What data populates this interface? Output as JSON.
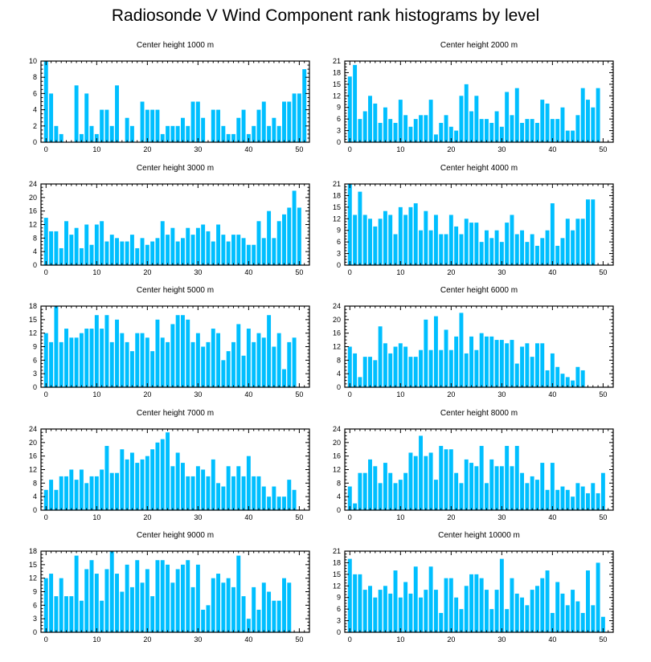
{
  "title": "Radiosonde V Wind Component rank histograms by level",
  "colors": {
    "bar": "#00bfff",
    "axis": "#000000"
  },
  "chart_data": [
    {
      "type": "bar",
      "title": "Center height 1000 m",
      "xlim": [
        -1,
        52
      ],
      "xticks": [
        0,
        10,
        20,
        30,
        40,
        50
      ],
      "ylim": [
        0,
        10
      ],
      "yticks": [
        0,
        2,
        4,
        6,
        8,
        10
      ],
      "values": [
        10,
        6,
        2,
        1,
        0,
        0,
        7,
        1,
        6,
        2,
        1,
        4,
        4,
        2,
        7,
        0,
        3,
        2,
        0,
        5,
        4,
        4,
        4,
        1,
        2,
        2,
        2,
        3,
        2,
        5,
        5,
        3,
        0,
        4,
        4,
        2,
        1,
        1,
        3,
        4,
        1,
        2,
        4,
        5,
        2,
        3,
        2,
        5,
        5,
        6,
        6,
        9
      ]
    },
    {
      "type": "bar",
      "title": "Center height 2000 m",
      "xlim": [
        -1,
        52
      ],
      "xticks": [
        0,
        10,
        20,
        30,
        40,
        50
      ],
      "ylim": [
        0,
        21
      ],
      "yticks": [
        0,
        3,
        6,
        9,
        12,
        15,
        18,
        21
      ],
      "values": [
        17,
        20,
        6,
        8,
        12,
        10,
        5,
        9,
        6,
        5,
        11,
        7,
        4,
        6,
        7,
        7,
        11,
        2,
        5,
        7,
        4,
        3,
        12,
        15,
        8,
        12,
        6,
        6,
        5,
        8,
        4,
        13,
        7,
        14,
        5,
        6,
        6,
        5,
        11,
        10,
        6,
        6,
        9,
        3,
        3,
        7,
        14,
        11,
        9,
        14,
        0,
        0
      ]
    },
    {
      "type": "bar",
      "title": "Center height 3000 m",
      "xlim": [
        -1,
        52
      ],
      "xticks": [
        0,
        10,
        20,
        30,
        40,
        50
      ],
      "ylim": [
        0,
        24
      ],
      "yticks": [
        0,
        4,
        8,
        12,
        16,
        20,
        24
      ],
      "values": [
        14,
        10,
        10,
        5,
        13,
        9,
        11,
        5,
        12,
        6,
        12,
        13,
        7,
        9,
        8,
        7,
        7,
        9,
        5,
        8,
        6,
        7,
        8,
        13,
        9,
        11,
        7,
        8,
        11,
        9,
        11,
        12,
        10,
        7,
        12,
        9,
        7,
        9,
        9,
        8,
        6,
        6,
        13,
        8,
        16,
        8,
        13,
        15,
        17,
        22,
        17,
        0
      ]
    },
    {
      "type": "bar",
      "title": "Center height 4000 m",
      "xlim": [
        -1,
        52
      ],
      "xticks": [
        0,
        10,
        20,
        30,
        40,
        50
      ],
      "ylim": [
        0,
        21
      ],
      "yticks": [
        0,
        3,
        6,
        9,
        12,
        15,
        18,
        21
      ],
      "values": [
        21,
        13,
        19,
        13,
        12,
        10,
        12,
        14,
        13,
        8,
        15,
        13,
        15,
        16,
        9,
        14,
        9,
        13,
        8,
        8,
        13,
        10,
        8,
        12,
        11,
        11,
        6,
        9,
        7,
        9,
        6,
        11,
        13,
        8,
        9,
        6,
        8,
        5,
        7,
        9,
        16,
        5,
        7,
        12,
        9,
        12,
        12,
        17,
        17,
        0,
        0,
        0
      ]
    },
    {
      "type": "bar",
      "title": "Center height 5000 m",
      "xlim": [
        -1,
        52
      ],
      "xticks": [
        0,
        10,
        20,
        30,
        40,
        50
      ],
      "ylim": [
        0,
        18
      ],
      "yticks": [
        0,
        3,
        6,
        9,
        12,
        15,
        18
      ],
      "values": [
        12,
        10,
        18,
        10,
        13,
        11,
        11,
        12,
        13,
        13,
        16,
        13,
        16,
        10,
        15,
        12,
        10,
        8,
        12,
        12,
        11,
        8,
        15,
        11,
        10,
        14,
        16,
        16,
        15,
        10,
        12,
        9,
        10,
        13,
        12,
        6,
        8,
        10,
        14,
        7,
        13,
        10,
        12,
        11,
        16,
        9,
        12,
        4,
        10,
        11,
        0,
        0
      ]
    },
    {
      "type": "bar",
      "title": "Center height 6000 m",
      "xlim": [
        -1,
        52
      ],
      "xticks": [
        0,
        10,
        20,
        30,
        40,
        50
      ],
      "ylim": [
        0,
        24
      ],
      "yticks": [
        0,
        4,
        8,
        12,
        16,
        20,
        24
      ],
      "values": [
        12,
        10,
        3,
        9,
        9,
        8,
        18,
        13,
        10,
        12,
        13,
        12,
        9,
        9,
        11,
        20,
        11,
        21,
        11,
        17,
        11,
        15,
        22,
        10,
        15,
        11,
        16,
        15,
        15,
        14,
        14,
        13,
        14,
        7,
        12,
        13,
        9,
        13,
        13,
        5,
        10,
        6,
        4,
        3,
        2,
        6,
        5,
        0,
        0,
        0,
        0,
        0
      ]
    },
    {
      "type": "bar",
      "title": "Center height 7000 m",
      "xlim": [
        -1,
        52
      ],
      "xticks": [
        0,
        10,
        20,
        30,
        40,
        50
      ],
      "ylim": [
        0,
        24
      ],
      "yticks": [
        0,
        4,
        8,
        12,
        16,
        20,
        24
      ],
      "values": [
        6,
        9,
        6,
        10,
        10,
        12,
        9,
        12,
        8,
        10,
        10,
        12,
        19,
        11,
        11,
        18,
        15,
        17,
        14,
        15,
        16,
        18,
        20,
        21,
        23,
        13,
        17,
        14,
        10,
        10,
        13,
        12,
        10,
        15,
        8,
        7,
        13,
        10,
        13,
        10,
        16,
        10,
        10,
        7,
        4,
        7,
        4,
        4,
        9,
        6,
        0,
        0
      ]
    },
    {
      "type": "bar",
      "title": "Center height 8000 m",
      "xlim": [
        -1,
        52
      ],
      "xticks": [
        0,
        10,
        20,
        30,
        40,
        50
      ],
      "ylim": [
        0,
        24
      ],
      "yticks": [
        0,
        4,
        8,
        12,
        16,
        20,
        24
      ],
      "values": [
        7,
        2,
        11,
        11,
        15,
        13,
        8,
        14,
        11,
        8,
        9,
        11,
        17,
        16,
        22,
        16,
        17,
        9,
        19,
        18,
        18,
        11,
        8,
        15,
        14,
        13,
        19,
        8,
        15,
        13,
        13,
        19,
        13,
        19,
        11,
        8,
        10,
        9,
        14,
        6,
        14,
        6,
        7,
        6,
        4,
        8,
        7,
        5,
        8,
        5,
        11,
        0
      ]
    },
    {
      "type": "bar",
      "title": "Center height 9000 m",
      "xlim": [
        -1,
        52
      ],
      "xticks": [
        0,
        10,
        20,
        30,
        40,
        50
      ],
      "ylim": [
        0,
        18
      ],
      "yticks": [
        0,
        3,
        6,
        9,
        12,
        15,
        18
      ],
      "values": [
        12,
        13,
        8,
        12,
        8,
        8,
        17,
        7,
        14,
        16,
        13,
        7,
        14,
        18,
        13,
        9,
        15,
        10,
        16,
        11,
        14,
        8,
        16,
        16,
        15,
        11,
        14,
        15,
        16,
        10,
        15,
        5,
        6,
        12,
        13,
        11,
        12,
        10,
        17,
        8,
        3,
        10,
        5,
        11,
        9,
        7,
        7,
        12,
        11,
        0,
        0,
        0
      ]
    },
    {
      "type": "bar",
      "title": "Center height 10000 m",
      "xlim": [
        -1,
        52
      ],
      "xticks": [
        0,
        10,
        20,
        30,
        40,
        50
      ],
      "ylim": [
        0,
        21
      ],
      "yticks": [
        0,
        3,
        6,
        9,
        12,
        15,
        18,
        21
      ],
      "values": [
        19,
        15,
        15,
        11,
        12,
        9,
        11,
        12,
        10,
        16,
        9,
        13,
        10,
        17,
        9,
        11,
        17,
        11,
        5,
        14,
        14,
        9,
        6,
        12,
        15,
        15,
        14,
        11,
        6,
        11,
        19,
        6,
        14,
        10,
        9,
        7,
        11,
        12,
        14,
        16,
        5,
        13,
        10,
        7,
        11,
        8,
        5,
        16,
        7,
        18,
        4,
        0
      ]
    }
  ]
}
